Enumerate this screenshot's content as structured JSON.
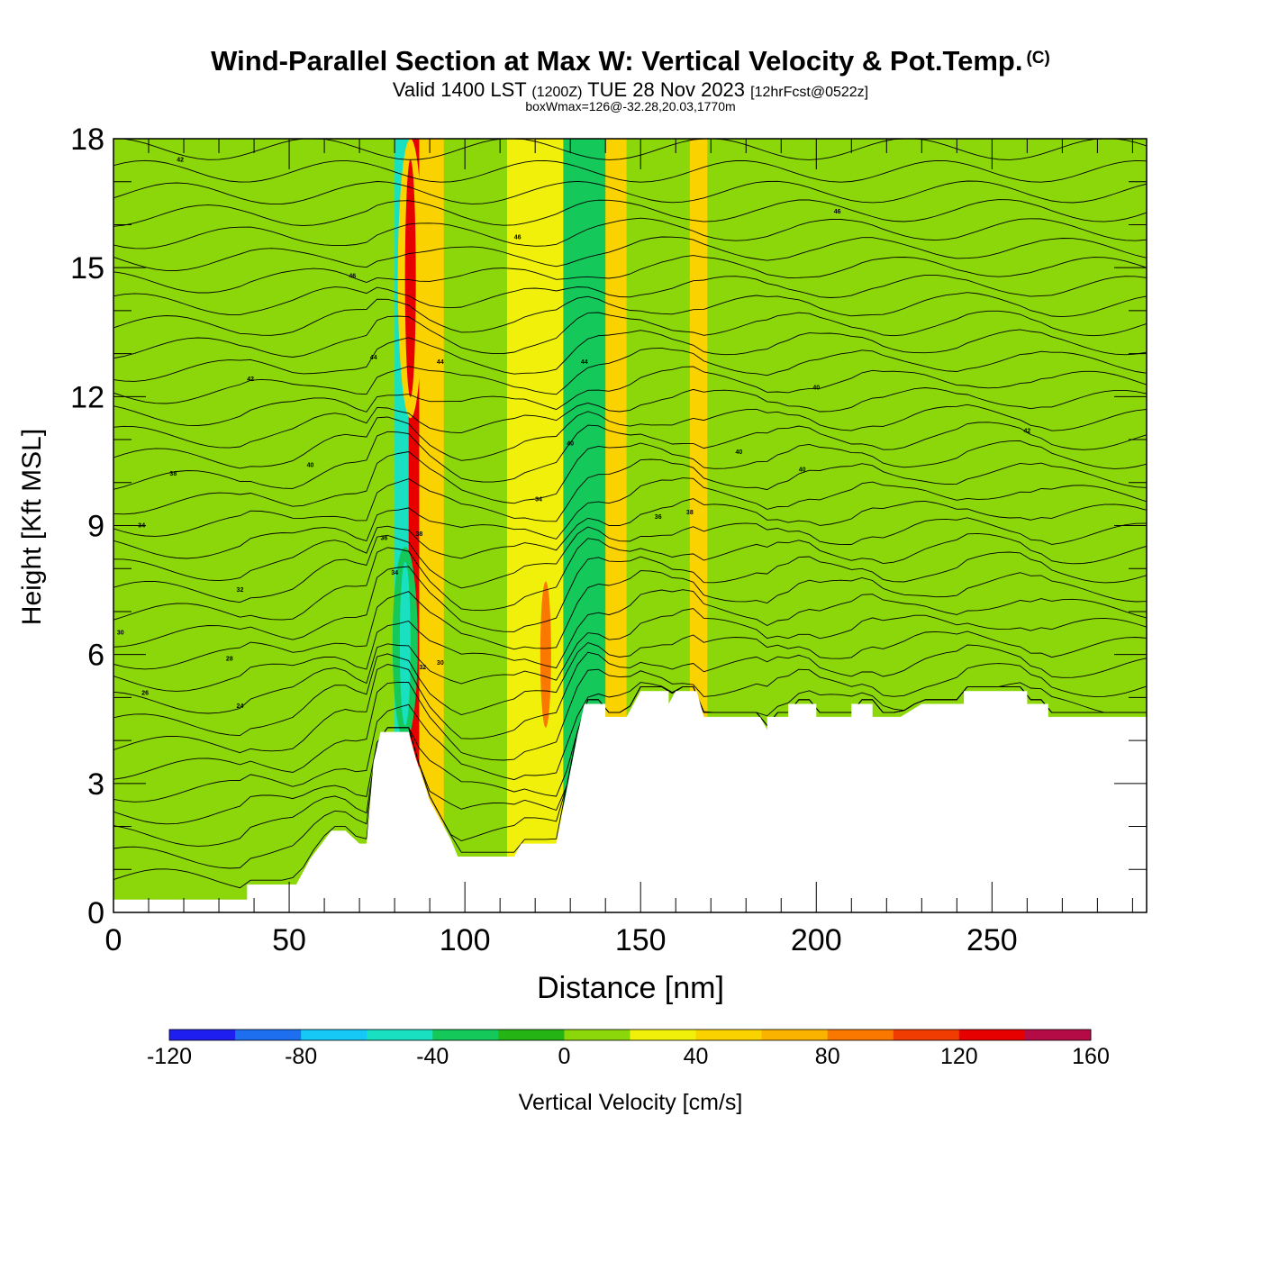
{
  "header": {
    "title": "Wind-Parallel Section at Max W: Vertical Velocity & Pot.Temp.",
    "copyright": "(C)",
    "valid_main": "Valid 1400 LST",
    "valid_utc": "(1200Z)",
    "valid_date": "TUE 28 Nov 2023",
    "forecast": "[12hrFcst@0522z]",
    "box_info": "boxWmax=126@-32.28,20.03,1770m"
  },
  "chart_data": {
    "type": "heatmap",
    "xlabel": "Distance [nm]",
    "ylabel": "Height [Kft MSL]",
    "xlim": [
      0,
      294
    ],
    "ylim": [
      0,
      18
    ],
    "x_ticks": [
      0,
      50,
      100,
      150,
      200,
      250
    ],
    "y_ticks": [
      0,
      3,
      6,
      9,
      12,
      15,
      18
    ],
    "colorbar": {
      "label": "Vertical Velocity [cm/s]",
      "bounds": [
        -120,
        -100,
        -80,
        -60,
        -40,
        -20,
        0,
        20,
        40,
        60,
        80,
        100,
        120,
        140,
        160
      ],
      "tick_labels": [
        "-120",
        "-80",
        "-40",
        "0",
        "40",
        "80",
        "120",
        "160"
      ],
      "colors": [
        "#1e1ef0",
        "#1e6ef0",
        "#16c8f5",
        "#18e0c0",
        "#14c85a",
        "#24b414",
        "#8cd70a",
        "#f0f00a",
        "#fad200",
        "#fab400",
        "#fa7800",
        "#f03c00",
        "#e60000",
        "#b40a46"
      ]
    },
    "vertical_velocity_bands": [
      {
        "x": [
          0,
          10
        ],
        "w": 0
      },
      {
        "x": [
          10,
          18
        ],
        "w": 8
      },
      {
        "x": [
          18,
          30
        ],
        "w": 0
      },
      {
        "x": [
          30,
          48
        ],
        "w": 12
      },
      {
        "x": [
          48,
          62
        ],
        "w": 2
      },
      {
        "x": [
          62,
          80
        ],
        "w": 12
      },
      {
        "x": [
          80,
          84
        ],
        "w": -50
      },
      {
        "x": [
          84,
          87
        ],
        "w": 126
      },
      {
        "x": [
          87,
          94
        ],
        "w": 50
      },
      {
        "x": [
          94,
          112
        ],
        "w": 6
      },
      {
        "x": [
          112,
          128
        ],
        "w": 28
      },
      {
        "x": [
          128,
          140
        ],
        "w": -22
      },
      {
        "x": [
          140,
          146
        ],
        "w": 42
      },
      {
        "x": [
          146,
          164
        ],
        "w": 8
      },
      {
        "x": [
          164,
          169
        ],
        "w": 44
      },
      {
        "x": [
          169,
          190
        ],
        "w": 12
      },
      {
        "x": [
          190,
          208
        ],
        "w": 0
      },
      {
        "x": [
          208,
          226
        ],
        "w": 12
      },
      {
        "x": [
          226,
          258
        ],
        "w": 6
      },
      {
        "x": [
          258,
          294
        ],
        "w": 10
      }
    ],
    "vertical_velocity_features": [
      {
        "name": "updraft-core-upper",
        "x": 84.5,
        "y": [
          11.5,
          18
        ],
        "w": 126
      },
      {
        "name": "updraft-core-lower",
        "x": 123,
        "y": [
          4,
          8
        ],
        "w": 80
      },
      {
        "name": "downdraft-core",
        "x": 83,
        "y": [
          4,
          8.5
        ],
        "w": -60
      }
    ],
    "terrain_profile": [
      [
        0,
        0.3
      ],
      [
        38,
        0.3
      ],
      [
        38,
        0.65
      ],
      [
        52,
        0.65
      ],
      [
        56,
        1.25
      ],
      [
        62,
        1.9
      ],
      [
        66,
        1.9
      ],
      [
        70,
        1.6
      ],
      [
        72,
        1.6
      ],
      [
        74,
        3.5
      ],
      [
        76,
        4.2
      ],
      [
        84,
        4.2
      ],
      [
        86,
        3.6
      ],
      [
        90,
        2.6
      ],
      [
        96,
        1.7
      ],
      [
        98,
        1.3
      ],
      [
        114,
        1.3
      ],
      [
        116,
        1.6
      ],
      [
        126,
        1.6
      ],
      [
        132,
        4.1
      ],
      [
        134,
        4.85
      ],
      [
        140,
        4.85
      ],
      [
        140,
        4.55
      ],
      [
        146,
        4.55
      ],
      [
        150,
        5.15
      ],
      [
        158,
        5.15
      ],
      [
        158,
        4.85
      ],
      [
        160,
        5.15
      ],
      [
        166,
        5.15
      ],
      [
        168,
        4.55
      ],
      [
        184,
        4.55
      ],
      [
        186,
        4.25
      ],
      [
        186,
        4.55
      ],
      [
        192,
        4.55
      ],
      [
        192,
        4.85
      ],
      [
        200,
        4.85
      ],
      [
        200,
        4.55
      ],
      [
        210,
        4.55
      ],
      [
        210,
        4.85
      ],
      [
        216,
        4.85
      ],
      [
        216,
        4.55
      ],
      [
        224,
        4.55
      ],
      [
        230,
        4.85
      ],
      [
        242,
        4.85
      ],
      [
        242,
        5.15
      ],
      [
        260,
        5.15
      ],
      [
        260,
        4.85
      ],
      [
        266,
        4.85
      ],
      [
        266,
        4.55
      ],
      [
        294,
        4.55
      ]
    ],
    "potential_temperature_labels": [
      {
        "x": 19,
        "y": 17.5,
        "label": "42"
      },
      {
        "x": 68,
        "y": 14.8,
        "label": "46"
      },
      {
        "x": 74,
        "y": 12.9,
        "label": "44"
      },
      {
        "x": 39,
        "y": 12.4,
        "label": "42"
      },
      {
        "x": 56,
        "y": 10.4,
        "label": "40"
      },
      {
        "x": 17,
        "y": 10.2,
        "label": "38"
      },
      {
        "x": 8,
        "y": 9.0,
        "label": "34"
      },
      {
        "x": 36,
        "y": 7.5,
        "label": "32"
      },
      {
        "x": 2,
        "y": 6.5,
        "label": "30"
      },
      {
        "x": 33,
        "y": 5.9,
        "label": "28"
      },
      {
        "x": 9,
        "y": 5.1,
        "label": "26"
      },
      {
        "x": 36,
        "y": 4.8,
        "label": "24"
      },
      {
        "x": 77,
        "y": 8.7,
        "label": "36"
      },
      {
        "x": 80,
        "y": 7.9,
        "label": "34"
      },
      {
        "x": 88,
        "y": 5.7,
        "label": "32"
      },
      {
        "x": 93,
        "y": 5.8,
        "label": "30"
      },
      {
        "x": 87,
        "y": 8.8,
        "label": "38"
      },
      {
        "x": 93,
        "y": 12.8,
        "label": "44"
      },
      {
        "x": 115,
        "y": 15.7,
        "label": "46"
      },
      {
        "x": 134,
        "y": 12.8,
        "label": "44"
      },
      {
        "x": 121,
        "y": 9.6,
        "label": "34"
      },
      {
        "x": 130,
        "y": 10.9,
        "label": "40"
      },
      {
        "x": 155,
        "y": 9.2,
        "label": "36"
      },
      {
        "x": 164,
        "y": 9.3,
        "label": "38"
      },
      {
        "x": 178,
        "y": 10.7,
        "label": "40"
      },
      {
        "x": 196,
        "y": 10.3,
        "label": "40"
      },
      {
        "x": 200,
        "y": 12.2,
        "label": "40"
      },
      {
        "x": 206,
        "y": 16.3,
        "label": "46"
      },
      {
        "x": 260,
        "y": 11.2,
        "label": "42"
      }
    ]
  }
}
